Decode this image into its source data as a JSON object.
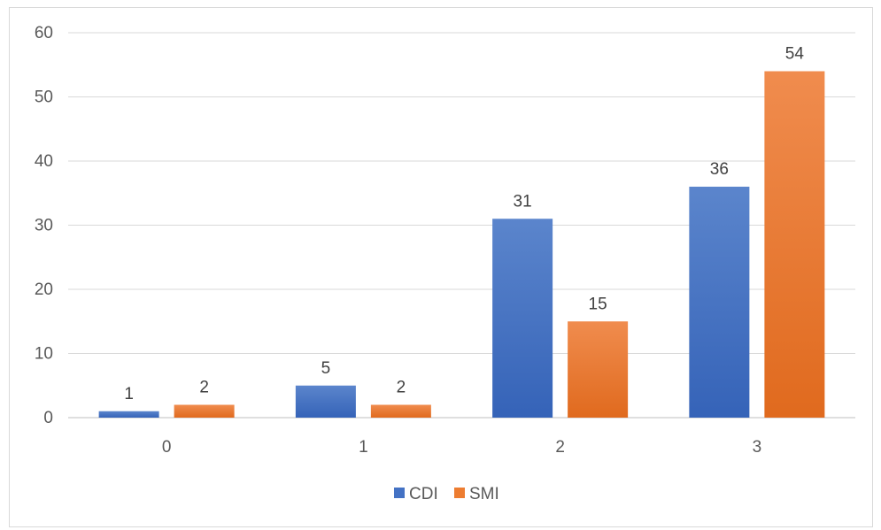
{
  "chart_data": {
    "type": "bar",
    "categories": [
      "0",
      "1",
      "2",
      "3"
    ],
    "series": [
      {
        "name": "CDI",
        "values": [
          1,
          5,
          31,
          36
        ],
        "color": "#4472C4"
      },
      {
        "name": "SMI",
        "values": [
          2,
          2,
          15,
          54
        ],
        "color": "#ED7D31"
      }
    ],
    "y_ticks": [
      "0",
      "10",
      "20",
      "30",
      "40",
      "50",
      "60"
    ],
    "ylim": [
      0,
      60
    ],
    "title": "",
    "xlabel": "",
    "ylabel": "",
    "grid": true,
    "legend": "bottom-center",
    "data_labels": true
  }
}
